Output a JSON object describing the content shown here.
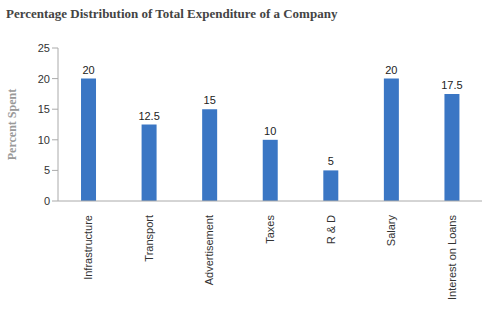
{
  "chart_data": {
    "type": "bar",
    "title": "Percentage Distribution of Total Expenditure of a Company",
    "y_label": "Percent Spent",
    "categories": [
      "Infrastructure",
      "Transport",
      "Advertisement",
      "Taxes",
      "R & D",
      "Salary",
      "Interest on Loans"
    ],
    "values": [
      20,
      12.5,
      15,
      10,
      5,
      20,
      17.5
    ],
    "color": "#3a76c4",
    "ylim": [
      0,
      25
    ],
    "yticks": [
      0,
      5,
      10,
      15,
      20,
      25
    ],
    "grid": false,
    "data_labels": true
  }
}
